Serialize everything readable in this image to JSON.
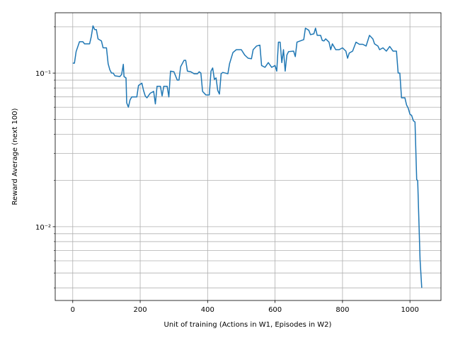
{
  "chart_data": {
    "type": "line",
    "xlabel": "Unit of training (Actions in W1, Episodes in W2)",
    "ylabel": "Reward Average (next 100)",
    "color": "#1f77b4",
    "grid": true,
    "yscale": "log",
    "xlim": [
      -52,
      1092
    ],
    "xticks": [
      0,
      200,
      400,
      600,
      800,
      1000
    ],
    "ylim": [
      0.00331,
      0.247
    ],
    "yticks": [
      {
        "value": 0.01,
        "label": "10⁻²"
      },
      {
        "value": 0.1,
        "label": "10⁻¹"
      }
    ],
    "yminor_ticks": [
      0.004,
      0.005,
      0.006,
      0.007,
      0.008,
      0.009,
      0.02,
      0.03,
      0.04,
      0.05,
      0.06,
      0.07,
      0.08,
      0.09,
      0.2
    ],
    "x": [
      0,
      5,
      10,
      20,
      30,
      35,
      50,
      55,
      60,
      65,
      70,
      75,
      85,
      90,
      100,
      105,
      110,
      115,
      120,
      125,
      140,
      145,
      150,
      152,
      158,
      160,
      165,
      170,
      175,
      190,
      195,
      205,
      210,
      215,
      220,
      230,
      240,
      245,
      250,
      260,
      265,
      270,
      280,
      285,
      290,
      300,
      310,
      315,
      320,
      330,
      335,
      340,
      350,
      360,
      370,
      375,
      380,
      385,
      395,
      405,
      410,
      415,
      420,
      425,
      430,
      435,
      440,
      445,
      460,
      465,
      475,
      485,
      500,
      510,
      520,
      530,
      535,
      545,
      555,
      560,
      570,
      580,
      590,
      600,
      605,
      610,
      615,
      620,
      625,
      630,
      635,
      640,
      655,
      660,
      665,
      675,
      685,
      690,
      700,
      705,
      715,
      720,
      725,
      735,
      740,
      745,
      750,
      760,
      765,
      770,
      780,
      790,
      800,
      810,
      815,
      820,
      830,
      840,
      850,
      860,
      870,
      880,
      890,
      895,
      905,
      910,
      920,
      930,
      940,
      950,
      960,
      965,
      970,
      975,
      985,
      990,
      995,
      1000,
      1005,
      1010,
      1015,
      1020,
      1023,
      1030,
      1035
    ],
    "values": [
      0.116,
      0.116,
      0.138,
      0.16,
      0.16,
      0.155,
      0.155,
      0.173,
      0.203,
      0.192,
      0.192,
      0.167,
      0.162,
      0.146,
      0.146,
      0.115,
      0.105,
      0.1,
      0.1,
      0.096,
      0.095,
      0.098,
      0.114,
      0.095,
      0.093,
      0.064,
      0.06,
      0.067,
      0.07,
      0.07,
      0.083,
      0.086,
      0.077,
      0.071,
      0.069,
      0.074,
      0.076,
      0.063,
      0.082,
      0.082,
      0.071,
      0.082,
      0.082,
      0.07,
      0.103,
      0.102,
      0.09,
      0.09,
      0.11,
      0.121,
      0.121,
      0.103,
      0.102,
      0.099,
      0.099,
      0.102,
      0.1,
      0.076,
      0.072,
      0.072,
      0.103,
      0.108,
      0.091,
      0.093,
      0.077,
      0.073,
      0.099,
      0.101,
      0.099,
      0.115,
      0.136,
      0.142,
      0.142,
      0.131,
      0.125,
      0.124,
      0.142,
      0.15,
      0.152,
      0.112,
      0.109,
      0.117,
      0.109,
      0.112,
      0.103,
      0.159,
      0.159,
      0.117,
      0.142,
      0.103,
      0.131,
      0.138,
      0.139,
      0.128,
      0.159,
      0.162,
      0.165,
      0.196,
      0.19,
      0.178,
      0.18,
      0.196,
      0.176,
      0.176,
      0.163,
      0.162,
      0.167,
      0.159,
      0.142,
      0.155,
      0.142,
      0.142,
      0.146,
      0.139,
      0.125,
      0.135,
      0.139,
      0.159,
      0.154,
      0.154,
      0.15,
      0.176,
      0.167,
      0.155,
      0.15,
      0.142,
      0.146,
      0.139,
      0.149,
      0.139,
      0.139,
      0.1,
      0.1,
      0.069,
      0.069,
      0.062,
      0.059,
      0.054,
      0.053,
      0.049,
      0.048,
      0.0203,
      0.0199,
      0.0061,
      0.004
    ]
  }
}
